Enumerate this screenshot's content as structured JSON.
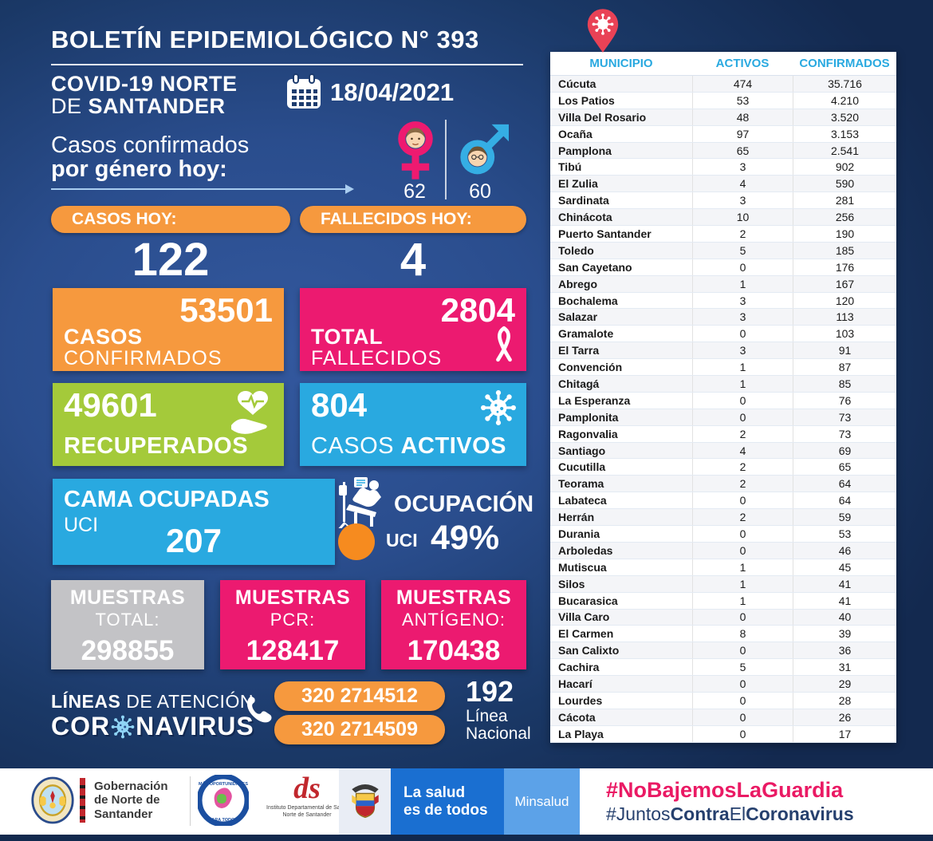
{
  "header": {
    "title": "BOLETÍN EPIDEMIOLÓGICO N° 393",
    "region_line1": "COVID-19 NORTE",
    "region_line2_light": "DE ",
    "region_line2_bold": "SANTANDER",
    "date": "18/04/2021"
  },
  "gender": {
    "caption_line1": "Casos confirmados",
    "caption_line2": "por género hoy:",
    "female_value": "62",
    "male_value": "60"
  },
  "today": {
    "cases_label": "CASOS HOY:",
    "cases_value": "122",
    "deaths_label": "FALLECIDOS HOY:",
    "deaths_value": "4"
  },
  "totals": {
    "confirmed_value": "53501",
    "confirmed_label1": "CASOS",
    "confirmed_label2": "CONFIRMADOS",
    "deaths_value": "2804",
    "deaths_label1": "TOTAL",
    "deaths_label2": "FALLECIDOS",
    "recovered_value": "49601",
    "recovered_label": "RECUPERADOS",
    "active_value": "804",
    "active_label_light": "CASOS ",
    "active_label_bold": "ACTIVOS"
  },
  "uci": {
    "beds_label1": "CAMA OCUPADAS",
    "beds_label2": "UCI",
    "beds_value": "207",
    "occupancy_label": "OCUPACIÓN",
    "occupancy_unit": "UCI",
    "occupancy_value": "49%"
  },
  "samples": {
    "total_title": "MUESTRAS",
    "total_sub": "TOTAL:",
    "total_value": "298855",
    "pcr_title": "MUESTRAS",
    "pcr_sub": "PCR:",
    "pcr_value": "128417",
    "antigen_title": "MUESTRAS",
    "antigen_sub": "ANTÍGENO:",
    "antigen_value": "170438"
  },
  "hotlines": {
    "label_bold": "LÍNEAS ",
    "label_light": "DE ATENCIÓN",
    "brand_prefix": "COR",
    "brand_suffix": "NAVIRUS",
    "phone1": "320 2714512",
    "phone2": "320 2714509",
    "national_value": "192",
    "national_label1": "Línea",
    "national_label2": "Nacional"
  },
  "table": {
    "headers": [
      "MUNICIPIO",
      "ACTIVOS",
      "CONFIRMADOS"
    ],
    "rows": [
      [
        "Cúcuta",
        "474",
        "35.716"
      ],
      [
        "Los Patios",
        "53",
        "4.210"
      ],
      [
        "Villa Del Rosario",
        "48",
        "3.520"
      ],
      [
        "Ocaña",
        "97",
        "3.153"
      ],
      [
        "Pamplona",
        "65",
        "2.541"
      ],
      [
        "Tibú",
        "3",
        "902"
      ],
      [
        "El Zulia",
        "4",
        "590"
      ],
      [
        "Sardinata",
        "3",
        "281"
      ],
      [
        "Chinácota",
        "10",
        "256"
      ],
      [
        "Puerto Santander",
        "2",
        "190"
      ],
      [
        "Toledo",
        "5",
        "185"
      ],
      [
        "San Cayetano",
        "0",
        "176"
      ],
      [
        "Abrego",
        "1",
        "167"
      ],
      [
        "Bochalema",
        "3",
        "120"
      ],
      [
        "Salazar",
        "3",
        "113"
      ],
      [
        "Gramalote",
        "0",
        "103"
      ],
      [
        "El Tarra",
        "3",
        "91"
      ],
      [
        "Convención",
        "1",
        "87"
      ],
      [
        "Chitagá",
        "1",
        "85"
      ],
      [
        "La Esperanza",
        "0",
        "76"
      ],
      [
        "Pamplonita",
        "0",
        "73"
      ],
      [
        "Ragonvalia",
        "2",
        "73"
      ],
      [
        "Santiago",
        "4",
        "69"
      ],
      [
        "Cucutilla",
        "2",
        "65"
      ],
      [
        "Teorama",
        "2",
        "64"
      ],
      [
        "Labateca",
        "0",
        "64"
      ],
      [
        "Herrán",
        "2",
        "59"
      ],
      [
        "Durania",
        "0",
        "53"
      ],
      [
        "Arboledas",
        "0",
        "46"
      ],
      [
        "Mutiscua",
        "1",
        "45"
      ],
      [
        "Silos",
        "1",
        "41"
      ],
      [
        "Bucarasica",
        "1",
        "41"
      ],
      [
        "Villa Caro",
        "0",
        "40"
      ],
      [
        "El Carmen",
        "8",
        "39"
      ],
      [
        "San Calixto",
        "0",
        "36"
      ],
      [
        "Cachira",
        "5",
        "31"
      ],
      [
        "Hacarí",
        "0",
        "29"
      ],
      [
        "Lourdes",
        "0",
        "28"
      ],
      [
        "Cácota",
        "0",
        "26"
      ],
      [
        "La Playa",
        "0",
        "17"
      ]
    ]
  },
  "footer": {
    "gov_line1": "Gobernación",
    "gov_line2": "de Norte de",
    "gov_line3": "Santander",
    "circle_logo_line1": "MÁS OPORTUNIDADES",
    "circle_logo_line2": "PARA TODOS",
    "ids_logo": "ds",
    "ids_caption1": "Instituto Departamental de Salud",
    "ids_caption2": "Norte de Santander",
    "minsalud_slogan1": "La salud",
    "minsalud_slogan2": "es de todos",
    "minsalud_name": "Minsalud",
    "hashtag1": "#NoBajemosLaGuardia",
    "hashtag2_p1": "#",
    "hashtag2_p2": "Juntos",
    "hashtag2_p3": "Contra",
    "hashtag2_p4": "El",
    "hashtag2_p5": "Coronavirus"
  },
  "colors": {
    "orange": "#F6993E",
    "pink": "#EC1A70",
    "green": "#A4CA3A",
    "light_blue": "#29A9E0",
    "navy_background": "#1A3866",
    "hashtag_pink": "#EA1A64",
    "hashtag_navy": "#26406E",
    "minsalud_blue": "#1A6FD1",
    "minsalud_light_blue": "#5CA2E8"
  }
}
